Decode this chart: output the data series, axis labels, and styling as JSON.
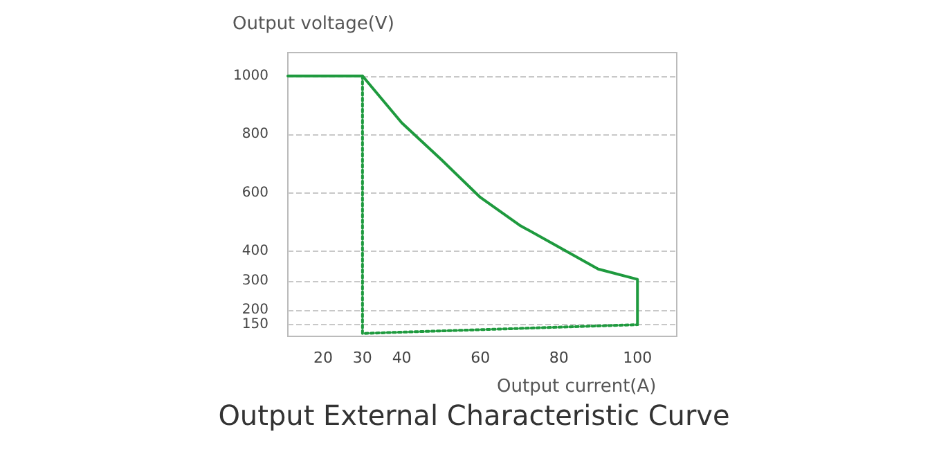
{
  "chart_data": {
    "type": "line",
    "title": "Output External Characteristic Curve",
    "xlabel": "Output current(A)",
    "ylabel": "Output voltage(V)",
    "xlim": [
      11,
      110
    ],
    "xticks": [
      20,
      30,
      40,
      60,
      80,
      100
    ],
    "ylim": [
      110,
      1080
    ],
    "yticks": [
      150,
      200,
      300,
      400,
      600,
      800,
      1000
    ],
    "grid": "y",
    "marker": "none",
    "series": [
      {
        "color": "#1e9a3e",
        "line_style": "solid",
        "x": [
          11,
          30,
          40,
          50,
          60,
          70,
          80,
          90,
          100,
          100
        ],
        "values": [
          1000,
          1000,
          840,
          715,
          585,
          490,
          415,
          340,
          305,
          150
        ]
      },
      {
        "color": "#1e9a3e",
        "line_style": "dotted",
        "x": [
          30,
          30,
          100
        ],
        "values": [
          1000,
          120,
          150
        ]
      }
    ]
  }
}
